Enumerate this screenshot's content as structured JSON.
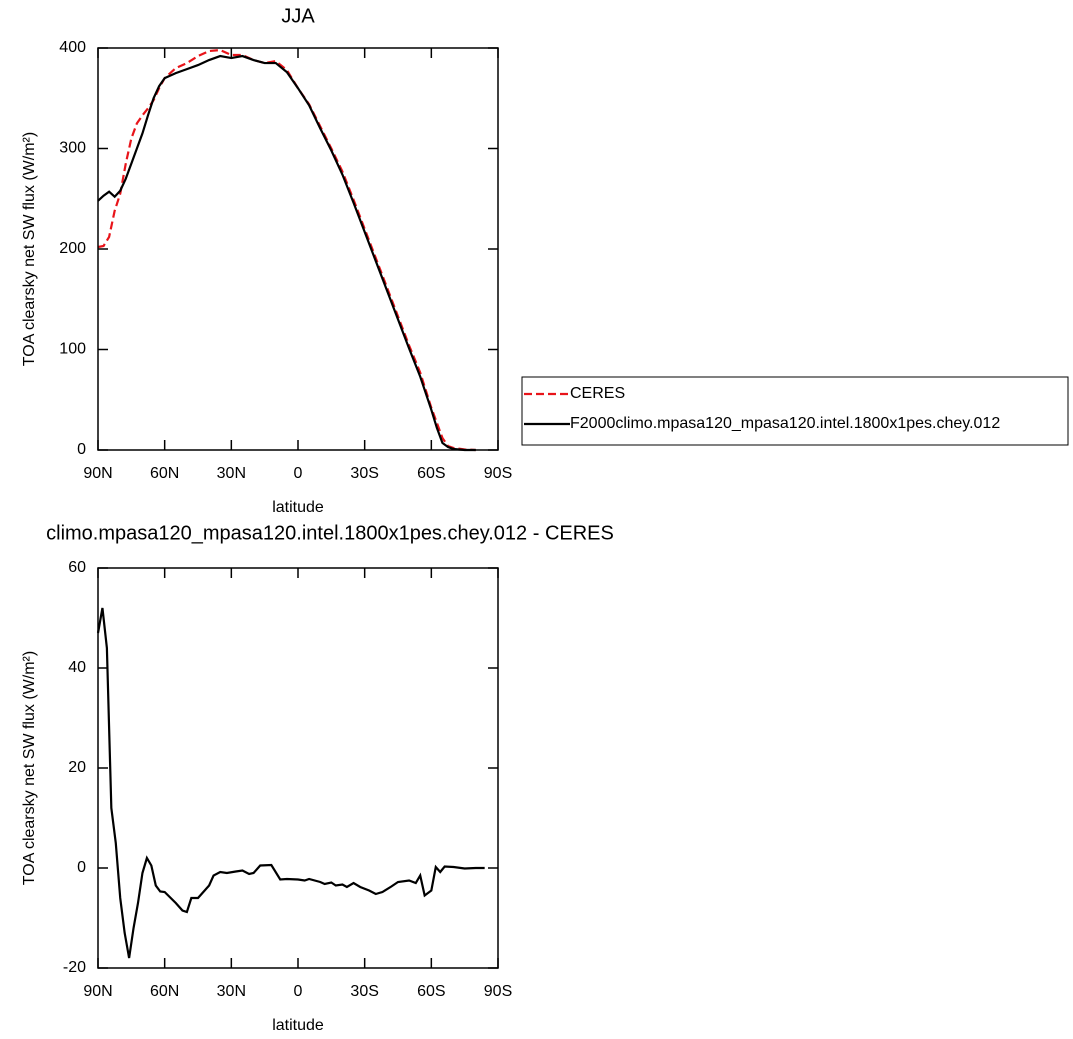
{
  "chart_data": [
    {
      "type": "line",
      "title": "JJA",
      "xlabel": "latitude",
      "ylabel": "TOA clearsky net SW flux (W/m²)",
      "x": [
        90,
        87.5,
        85,
        82.5,
        80,
        77.5,
        75,
        72.5,
        70,
        67.5,
        65,
        62.5,
        60,
        55,
        50,
        45,
        40,
        35,
        30,
        25,
        20,
        15,
        10,
        5,
        0,
        -5,
        -10,
        -15,
        -20,
        -25,
        -30,
        -35,
        -40,
        -45,
        -50,
        -55,
        -60,
        -62.5,
        -65,
        -67.5,
        -70,
        -75,
        -80
      ],
      "series": [
        {
          "name": "CERES",
          "color": "#e8141a",
          "style": "dashed",
          "values": [
            202,
            203,
            212,
            238,
            255,
            285,
            310,
            325,
            333,
            340,
            348,
            360,
            370,
            380,
            385,
            392,
            397,
            398,
            393,
            393,
            388,
            385,
            387,
            378,
            360,
            344,
            322,
            300,
            277,
            249,
            220,
            191,
            162,
            133,
            104,
            77,
            42,
            27,
            12,
            4,
            2,
            0.5,
            0
          ]
        },
        {
          "name": "F2000climo.mpasa120_mpasa120.intel.1800x1pes.chey.012",
          "color": "#000000",
          "style": "solid",
          "values": [
            248,
            253,
            257,
            252,
            258,
            270,
            285,
            300,
            315,
            333,
            350,
            362,
            370,
            375,
            379,
            383,
            388,
            392,
            390,
            392,
            388,
            385,
            385,
            376,
            360,
            343,
            320,
            298,
            274,
            246,
            217,
            188,
            159,
            130,
            101,
            73,
            40,
            22,
            7,
            3,
            1,
            0,
            0
          ]
        }
      ],
      "xlim": [
        90,
        -90
      ],
      "xticks": [
        {
          "value": 90,
          "label": "90N"
        },
        {
          "value": 60,
          "label": "60N"
        },
        {
          "value": 30,
          "label": "30N"
        },
        0,
        {
          "value": -30,
          "label": "30S"
        },
        {
          "value": -60,
          "label": "60S"
        },
        {
          "value": -90,
          "label": "90S"
        }
      ],
      "ylim": [
        0,
        400
      ],
      "yticks": [
        0,
        100,
        200,
        300,
        400
      ],
      "legend": "right"
    },
    {
      "type": "line",
      "title": "climo.mpasa120_mpasa120.intel.1800x1pes.chey.012 - CERES",
      "xlabel": "latitude",
      "ylabel": "TOA clearsky net SW flux (W/m²)",
      "x": [
        90,
        88,
        86,
        84,
        82,
        80,
        78,
        76,
        74,
        72,
        70,
        68,
        66,
        64,
        62,
        60,
        55,
        52,
        50,
        48,
        45,
        42,
        40,
        38,
        35,
        32,
        28,
        25,
        22,
        20,
        17,
        12,
        8,
        5,
        0,
        -3,
        -5,
        -10,
        -12,
        -15,
        -17,
        -20,
        -22,
        -25,
        -28,
        -32,
        -35,
        -38,
        -42,
        -45,
        -50,
        -53,
        -55,
        -57,
        -60,
        -62,
        -64,
        -66,
        -70,
        -75,
        -80,
        -84
      ],
      "series": [
        {
          "name": "F2000climo.mpasa120_mpasa120.intel.1800x1pes.chey.012 - CERES",
          "color": "#000000",
          "style": "solid",
          "values": [
            47,
            52,
            44,
            12,
            5,
            -6,
            -13,
            -18,
            -12,
            -7,
            -1,
            2,
            0.5,
            -3.5,
            -4.7,
            -4.8,
            -7,
            -8.5,
            -8.8,
            -6,
            -6,
            -4.5,
            -3.5,
            -1.5,
            -0.8,
            -1,
            -0.7,
            -0.5,
            -1.2,
            -1,
            0.5,
            0.6,
            -2.3,
            -2.2,
            -2.3,
            -2.5,
            -2.2,
            -2.8,
            -3.2,
            -2.9,
            -3.5,
            -3.3,
            -3.8,
            -3,
            -3.8,
            -4.5,
            -5.2,
            -4.8,
            -3.7,
            -2.8,
            -2.5,
            -3,
            -1.5,
            -5.5,
            -4.5,
            0.2,
            -0.8,
            0.3,
            0.2,
            -0.1,
            0,
            0
          ]
        }
      ],
      "xlim": [
        90,
        -90
      ],
      "xticks": [
        {
          "value": 90,
          "label": "90N"
        },
        {
          "value": 60,
          "label": "60N"
        },
        {
          "value": 30,
          "label": "30N"
        },
        0,
        {
          "value": -30,
          "label": "30S"
        },
        {
          "value": -60,
          "label": "60S"
        },
        {
          "value": -90,
          "label": "90S"
        }
      ],
      "ylim": [
        -20,
        60
      ],
      "yticks": [
        -20,
        0,
        20,
        40,
        60
      ]
    }
  ]
}
